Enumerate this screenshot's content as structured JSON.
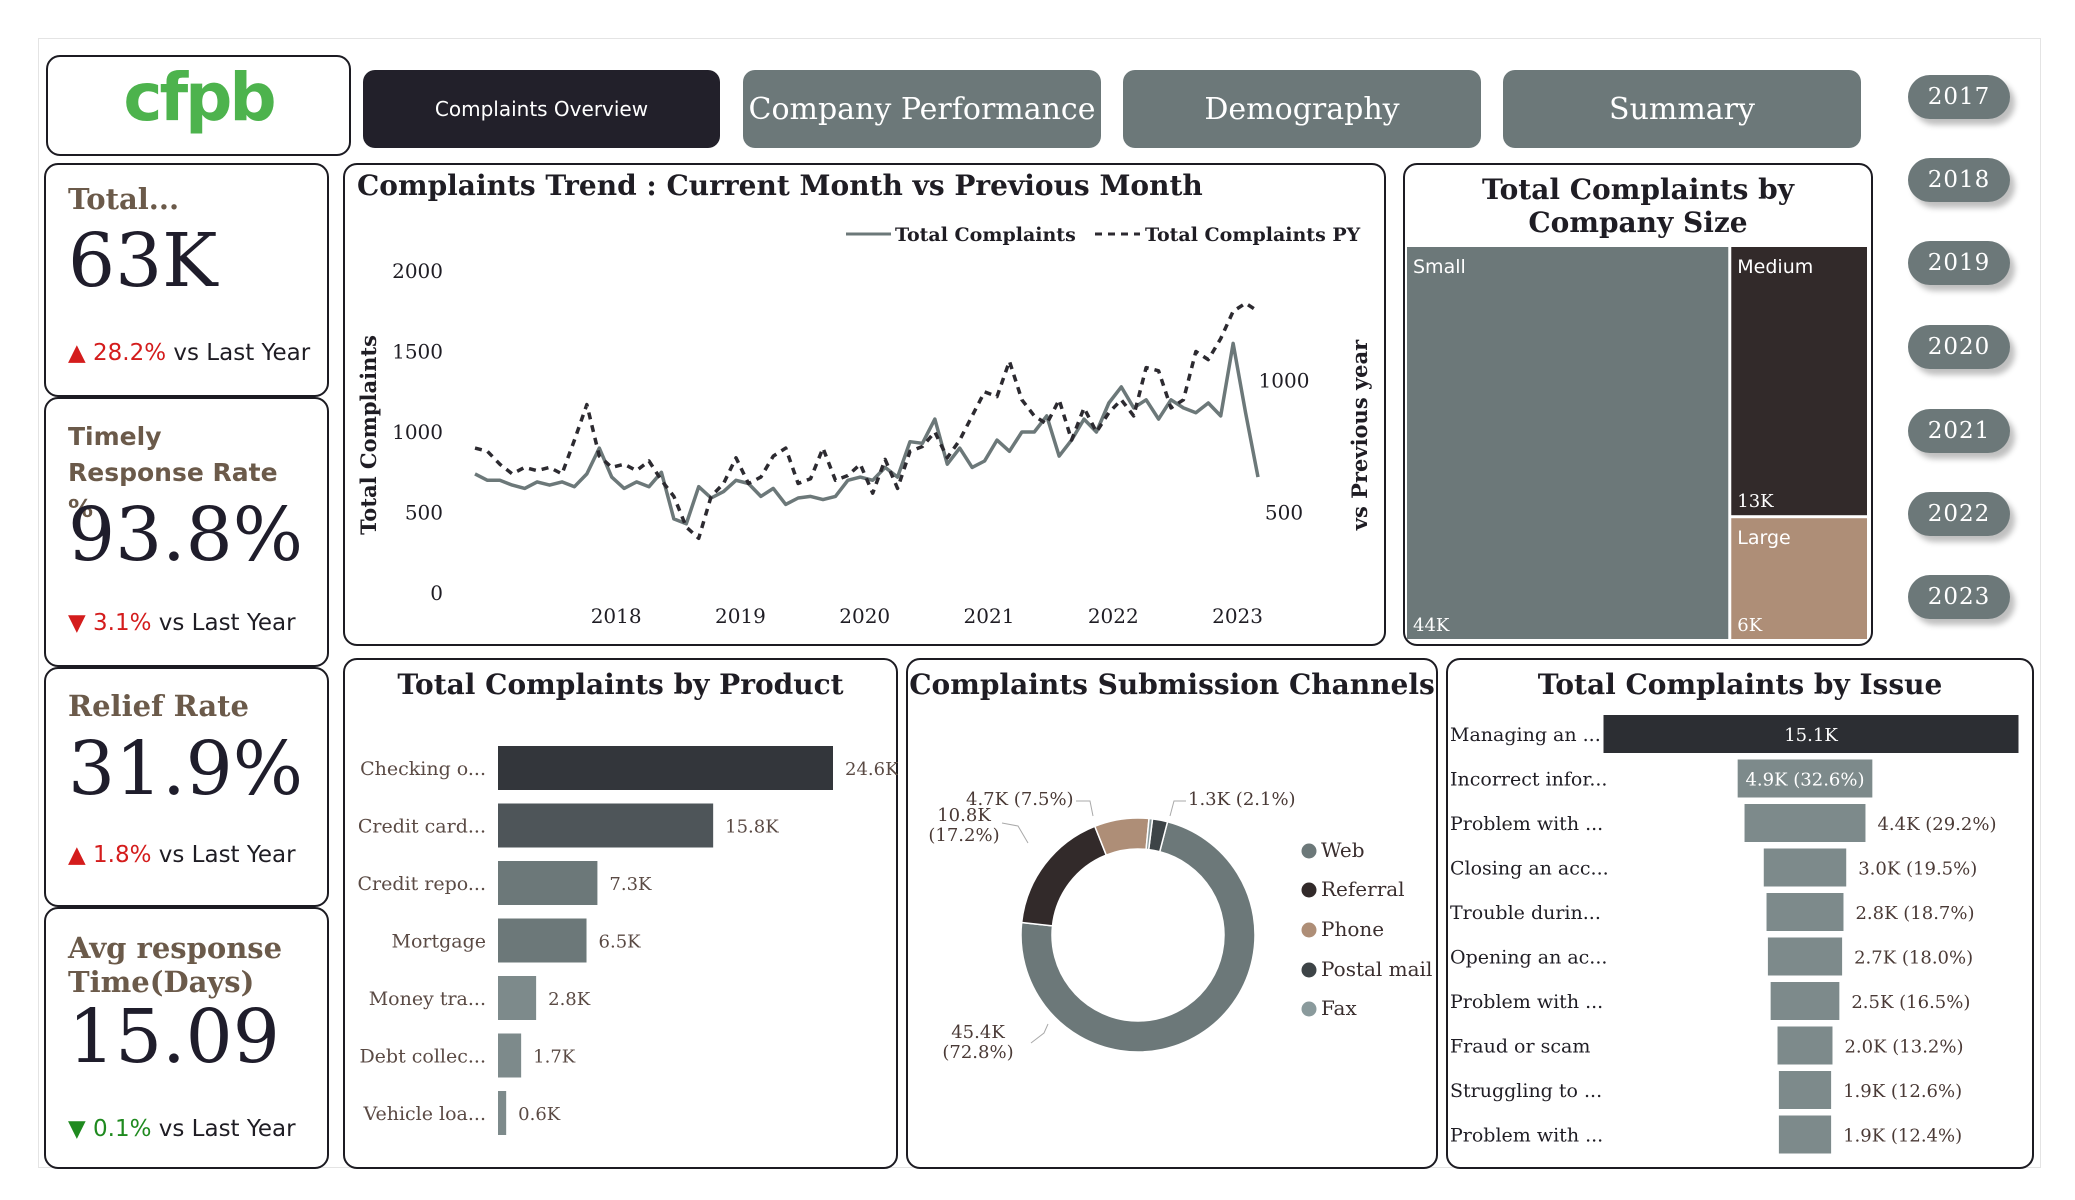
{
  "logo": {
    "text": "cfpb"
  },
  "nav": [
    {
      "label": "Complaints Overview",
      "active": true
    },
    {
      "label": "Company Performance",
      "active": false
    },
    {
      "label": "Demography",
      "active": false
    },
    {
      "label": "Summary",
      "active": false
    }
  ],
  "years": [
    "2017",
    "2018",
    "2019",
    "2020",
    "2021",
    "2022",
    "2023"
  ],
  "kpis": [
    {
      "title": "Total...",
      "value": "63K",
      "arrow": "▲",
      "delta": "28.2%",
      "suffix": " vs Last Year",
      "color": "#d41c1c"
    },
    {
      "title": "Timely Response Rate %",
      "value": "93.8%",
      "arrow": "▼",
      "delta": "3.1%",
      "suffix": " vs Last Year",
      "color": "#d41c1c"
    },
    {
      "title": "Relief Rate",
      "value": "31.9%",
      "arrow": "▲",
      "delta": "1.8%",
      "suffix": " vs Last Year",
      "color": "#d41c1c"
    },
    {
      "title": "Avg response Time(Days)",
      "value": "15.09",
      "arrow": "▼",
      "delta": "0.1%",
      "suffix": " vs Last Year",
      "color": "#1f8a1f"
    }
  ],
  "colors": {
    "slate": "#6c7879",
    "dark": "#22202a",
    "brown": "#322a2a",
    "tan": "#ae8e77",
    "accent_green": "#4db34d"
  },
  "chart_data": [
    {
      "type": "line",
      "title": "Complaints Trend : Current Month vs Previous Month",
      "ylabel": "Total Complaints",
      "y2label": "vs Previous year",
      "ylim": [
        0,
        2000
      ],
      "y_ticks": [
        "0",
        "500",
        "1000",
        "1500",
        "2000"
      ],
      "y2_ticks": [
        "500",
        "1000"
      ],
      "x_ticks": [
        "2018",
        "2019",
        "2020",
        "2021",
        "2022",
        "2023"
      ],
      "legend_position": "top-right",
      "series": [
        {
          "name": "Total Complaints",
          "style": "solid",
          "values": [
            740,
            700,
            700,
            670,
            650,
            690,
            670,
            690,
            660,
            740,
            900,
            720,
            650,
            690,
            660,
            750,
            460,
            430,
            660,
            590,
            630,
            700,
            680,
            600,
            650,
            550,
            590,
            600,
            580,
            600,
            700,
            720,
            700,
            780,
            720,
            940,
            930,
            1080,
            800,
            900,
            780,
            820,
            950,
            880,
            1000,
            1000,
            1100,
            850,
            950,
            1080,
            1000,
            1180,
            1280,
            1150,
            1200,
            1080,
            1200,
            1150,
            1120,
            1180,
            1100,
            1550,
            1120,
            720
          ]
        },
        {
          "name": "Total Complaints PY",
          "style": "dashed",
          "values": [
            900,
            880,
            800,
            740,
            780,
            760,
            780,
            740,
            950,
            1170,
            850,
            780,
            800,
            760,
            820,
            700,
            600,
            410,
            340,
            600,
            680,
            840,
            680,
            720,
            850,
            900,
            680,
            710,
            900,
            700,
            730,
            800,
            620,
            830,
            650,
            880,
            910,
            1000,
            840,
            950,
            1100,
            1250,
            1220,
            1440,
            1200,
            1100,
            1050,
            1200,
            950,
            1150,
            1000,
            1120,
            1200,
            1100,
            1400,
            1380,
            1150,
            1200,
            1500,
            1450,
            1580,
            1750,
            1800,
            1750
          ]
        }
      ]
    },
    {
      "type": "treemap",
      "title": "Total Complaints by Company Size",
      "categories": [
        "Small",
        "Medium",
        "Large"
      ],
      "values": [
        44,
        13,
        6
      ],
      "value_labels": [
        "44K",
        "13K",
        "6K"
      ]
    },
    {
      "type": "bar",
      "title": "Total Complaints by Product",
      "categories": [
        "Checking o...",
        "Credit card...",
        "Credit repo...",
        "Mortgage",
        "Money tra...",
        "Debt collec...",
        "Vehicle loa..."
      ],
      "values": [
        24.6,
        15.8,
        7.3,
        6.5,
        2.8,
        1.7,
        0.6
      ],
      "value_labels": [
        "24.6K",
        "15.8K",
        "7.3K",
        "6.5K",
        "2.8K",
        "1.7K",
        "0.6K"
      ]
    },
    {
      "type": "pie",
      "title": "Complaints Submission Channels",
      "categories": [
        "Web",
        "Referral",
        "Phone",
        "Postal mail",
        "Fax"
      ],
      "values": [
        45.4,
        10.8,
        4.7,
        1.3,
        0.3
      ],
      "slice_labels": [
        "45.4K (72.8%)",
        "10.8K (17.2%)",
        "4.7K (7.5%)",
        "1.3K (2.1%)",
        ""
      ],
      "colors": [
        "#6c7879",
        "#322a2a",
        "#ae8e77",
        "#3d4447",
        "#8a9a9c"
      ],
      "legend_position": "right"
    },
    {
      "type": "bar",
      "title": "Total Complaints by Issue",
      "categories": [
        "Managing an ...",
        "Incorrect infor...",
        "Problem with ...",
        "Closing an acc...",
        "Trouble durin...",
        "Opening an ac...",
        "Problem with ...",
        "Fraud or scam",
        "Struggling to ...",
        "Problem with ..."
      ],
      "values": [
        15.1,
        4.9,
        4.4,
        3.0,
        2.8,
        2.7,
        2.5,
        2.0,
        1.9,
        1.9
      ],
      "value_labels": [
        "15.1K",
        "4.9K (32.6%)",
        "4.4K (29.2%)",
        "3.0K (19.5%)",
        "2.8K (18.7%)",
        "2.7K (18.0%)",
        "2.5K (16.5%)",
        "2.0K (13.2%)",
        "1.9K (12.6%)",
        "1.9K (12.4%)"
      ]
    }
  ]
}
